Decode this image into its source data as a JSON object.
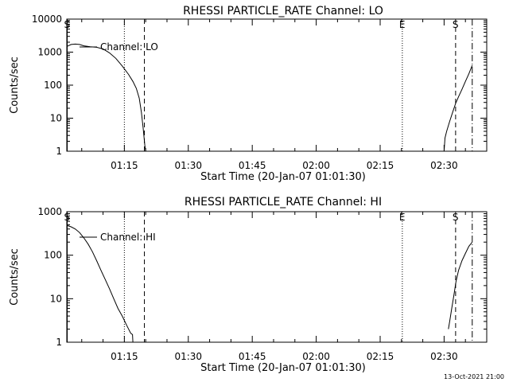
{
  "footer_date": "13-Oct-2021 21:00",
  "chart_data": [
    {
      "type": "line",
      "title": "RHESSI PARTICLE_RATE Channel: LO",
      "xlabel": "Start Time (20-Jan-07 01:01:30)",
      "ylabel": "Counts/sec",
      "yscale": "log",
      "ylim": [
        1,
        10000
      ],
      "xlim_minutes": [
        61.5,
        160.0
      ],
      "x_ticks": [
        {
          "label": "01:15",
          "value": 75
        },
        {
          "label": "01:30",
          "value": 90
        },
        {
          "label": "01:45",
          "value": 105
        },
        {
          "label": "02:00",
          "value": 120
        },
        {
          "label": "02:15",
          "value": 135
        },
        {
          "label": "02:30",
          "value": 150
        }
      ],
      "y_ticks": [
        {
          "label": "1",
          "value": 1
        },
        {
          "label": "10",
          "value": 10
        },
        {
          "label": "100",
          "value": 100
        },
        {
          "label": "1000",
          "value": 1000
        },
        {
          "label": "10000",
          "value": 10000
        }
      ],
      "legend": "Channel: LO",
      "markers": [
        {
          "label": "S",
          "x": 61.6,
          "style": "solid"
        },
        {
          "label": "",
          "x": 75.0,
          "style": "dotted"
        },
        {
          "label": "",
          "x": 79.7,
          "style": "dashed"
        },
        {
          "label": "E",
          "x": 140.2,
          "style": "dotted"
        },
        {
          "label": "S",
          "x": 152.7,
          "style": "dashed"
        },
        {
          "label": "",
          "x": 156.6,
          "style": "dashdot"
        }
      ],
      "series": [
        {
          "segments": [
            [
              [
                61.6,
                1500
              ],
              [
                62.5,
                1700
              ],
              [
                63.5,
                1750
              ],
              [
                64.5,
                1700
              ],
              [
                65.5,
                1550
              ],
              [
                67,
                1450
              ],
              [
                68.5,
                1400
              ],
              [
                70,
                1250
              ],
              [
                71.5,
                950
              ],
              [
                73,
                650
              ],
              [
                74.5,
                380
              ],
              [
                76,
                210
              ],
              [
                77,
                130
              ],
              [
                77.8,
                80
              ],
              [
                78.5,
                40
              ],
              [
                79,
                15
              ],
              [
                79.4,
                5
              ],
              [
                79.8,
                1.5
              ],
              [
                80,
                1
              ]
            ],
            [
              [
                150.0,
                1
              ],
              [
                150.2,
                2.5
              ],
              [
                150.6,
                4
              ],
              [
                151.3,
                8
              ],
              [
                152,
                15
              ],
              [
                152.7,
                28
              ],
              [
                153.4,
                45
              ],
              [
                154.2,
                75
              ],
              [
                155,
                130
              ],
              [
                155.8,
                220
              ],
              [
                156.6,
                400
              ]
            ]
          ]
        }
      ]
    },
    {
      "type": "line",
      "title": "RHESSI PARTICLE_RATE Channel: HI",
      "xlabel": "Start Time (20-Jan-07 01:01:30)",
      "ylabel": "Counts/sec",
      "yscale": "log",
      "ylim": [
        1,
        1000
      ],
      "xlim_minutes": [
        61.5,
        160.0
      ],
      "x_ticks": [
        {
          "label": "01:15",
          "value": 75
        },
        {
          "label": "01:30",
          "value": 90
        },
        {
          "label": "01:45",
          "value": 105
        },
        {
          "label": "02:00",
          "value": 120
        },
        {
          "label": "02:15",
          "value": 135
        },
        {
          "label": "02:30",
          "value": 150
        }
      ],
      "y_ticks": [
        {
          "label": "1",
          "value": 1
        },
        {
          "label": "10",
          "value": 10
        },
        {
          "label": "100",
          "value": 100
        },
        {
          "label": "1000",
          "value": 1000
        }
      ],
      "legend": "Channel: HI",
      "markers": [
        {
          "label": "S",
          "x": 61.6,
          "style": "solid"
        },
        {
          "label": "",
          "x": 75.0,
          "style": "dotted"
        },
        {
          "label": "",
          "x": 79.7,
          "style": "dashed"
        },
        {
          "label": "E",
          "x": 140.2,
          "style": "dotted"
        },
        {
          "label": "S",
          "x": 152.7,
          "style": "dashed"
        },
        {
          "label": "",
          "x": 156.6,
          "style": "dashdot"
        }
      ],
      "series": [
        {
          "segments": [
            [
              [
                61.6,
                480
              ],
              [
                62.5,
                450
              ],
              [
                63.5,
                400
              ],
              [
                64.5,
                330
              ],
              [
                65.5,
                250
              ],
              [
                66.5,
                180
              ],
              [
                67.5,
                120
              ],
              [
                68.5,
                75
              ],
              [
                69.5,
                45
              ],
              [
                70.5,
                28
              ],
              [
                71.5,
                17
              ],
              [
                72.5,
                10
              ],
              [
                73.5,
                6
              ],
              [
                74.5,
                4
              ],
              [
                75.5,
                2.5
              ],
              [
                76.5,
                1.6
              ],
              [
                76.9,
                1.5
              ],
              [
                77,
                1
              ]
            ],
            [
              [
                151.0,
                2
              ],
              [
                151.3,
                3
              ],
              [
                151.8,
                6
              ],
              [
                152.3,
                12
              ],
              [
                152.8,
                25
              ],
              [
                153.4,
                45
              ],
              [
                154.2,
                75
              ],
              [
                155,
                110
              ],
              [
                155.8,
                160
              ],
              [
                156.6,
                200
              ]
            ]
          ]
        }
      ]
    }
  ]
}
